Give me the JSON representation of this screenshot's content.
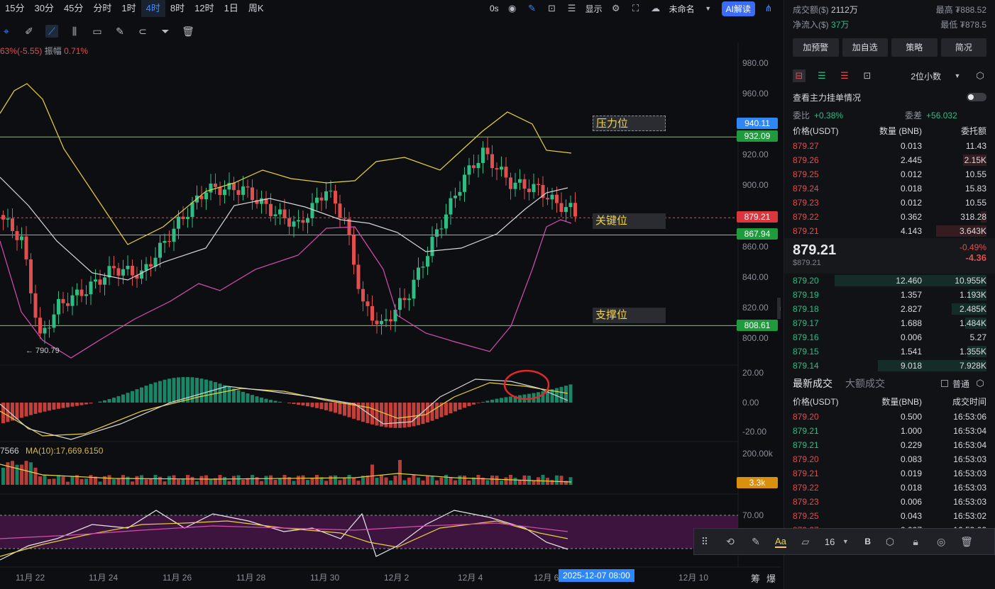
{
  "toolbar": {
    "timeframes": [
      "15分",
      "30分",
      "45分",
      "分时",
      "1时",
      "4时",
      "8时",
      "12时",
      "1日",
      "周K"
    ],
    "active_timeframe": "4时",
    "countdown": "0s",
    "display_label": "显示",
    "layout_name": "未命名",
    "ai_label": "AI解读"
  },
  "stats_line": {
    "change": "63%(-5.55)",
    "amplitude_label": "振幅",
    "amplitude": "0.71%"
  },
  "price_axis": [
    "980.00",
    "960.00",
    "940.00",
    "920.00",
    "900.00",
    "880.00",
    "860.00",
    "840.00",
    "820.00",
    "800.00"
  ],
  "price_tags": {
    "top": "940.11",
    "resistance": "932.09",
    "current": "879.21",
    "key": "867.94",
    "support": "808.61"
  },
  "annotations": {
    "resistance": "压力位",
    "key": "关键位",
    "support": "支撑位"
  },
  "low_marker": "← 790.79",
  "macd_axis": [
    "20.00",
    "0.00",
    "-20.00"
  ],
  "volume": {
    "ma_label": "7566",
    "ma10": "MA(10):17,669.6150",
    "axis_top": "200.00k",
    "tag": "3.3k"
  },
  "rsi_axis": [
    "70.00"
  ],
  "x_axis": [
    "11月 22",
    "11月 24",
    "11月 26",
    "11月 28",
    "11月 30",
    "12月 2",
    "12月 4",
    "12月 6",
    "12月 10"
  ],
  "crosshair_date": "2025-12-07 08:00",
  "bottom_right": [
    "筹",
    "爆"
  ],
  "float_toolbar": {
    "font_size": "16",
    "bold_label": "B",
    "aa_label": "Aa"
  },
  "colors": {
    "up": "#2dbd85",
    "down": "#e04e4e",
    "accent": "#3b6cf6",
    "annotation": "#f3d34a"
  },
  "side": {
    "stats": [
      {
        "k": "成交额($)",
        "v": "2112万",
        "k2": "最高",
        "v2": "₮888.52"
      },
      {
        "k": "净流入($)",
        "v": "37万",
        "k2": "最低",
        "v2": "₮878.5"
      }
    ],
    "buttons": [
      "加预警",
      "加自选",
      "策略",
      "简况"
    ],
    "decimal": "2位小数",
    "main_orders": "查看主力挂单情况",
    "weibi_label": "委比",
    "weibi": "+0.38%",
    "weicha_label": "委差",
    "weicha": "+56.032",
    "ob_headers": [
      "价格(USDT)",
      "数量 (BNB)",
      "委托额"
    ],
    "asks": [
      [
        "879.27",
        "0.013",
        "11.43",
        0
      ],
      [
        "879.26",
        "2.445",
        "2.15K",
        0.12
      ],
      [
        "879.25",
        "0.012",
        "10.55",
        0
      ],
      [
        "879.24",
        "0.018",
        "15.83",
        0
      ],
      [
        "879.23",
        "0.012",
        "10.55",
        0
      ],
      [
        "879.22",
        "0.362",
        "318.28",
        0.03
      ],
      [
        "879.21",
        "4.143",
        "3.643K",
        0.26
      ]
    ],
    "mid": {
      "price": "879.21",
      "usd": "$879.21",
      "pct": "-0.49%",
      "chg": "-4.36"
    },
    "bids": [
      [
        "879.20",
        "12.460",
        "10.955K",
        0.78
      ],
      [
        "879.19",
        "1.357",
        "1.193K",
        0.09
      ],
      [
        "879.18",
        "2.827",
        "2.485K",
        0.18
      ],
      [
        "879.17",
        "1.688",
        "1.484K",
        0.11
      ],
      [
        "879.16",
        "0.006",
        "5.27",
        0
      ],
      [
        "879.15",
        "1.541",
        "1.355K",
        0.1
      ],
      [
        "879.14",
        "9.018",
        "7.928K",
        0.56
      ]
    ],
    "trade_tabs": [
      "最新成交",
      "大额成交"
    ],
    "normal_label": "普通",
    "trade_headers": [
      "价格(USDT)",
      "数量(BNB)",
      "成交时间"
    ],
    "trades": [
      [
        "879.20",
        "0.500",
        "16:53:06",
        "down"
      ],
      [
        "879.21",
        "1.000",
        "16:53:04",
        "up"
      ],
      [
        "879.21",
        "0.229",
        "16:53:04",
        "up"
      ],
      [
        "879.20",
        "0.083",
        "16:53:03",
        "down"
      ],
      [
        "879.21",
        "0.019",
        "16:53:03",
        "down"
      ],
      [
        "879.22",
        "0.018",
        "16:53:03",
        "down"
      ],
      [
        "879.23",
        "0.006",
        "16:53:03",
        "down"
      ],
      [
        "879.25",
        "0.043",
        "16:53:02",
        "down"
      ],
      [
        "879.27",
        "0.007",
        "16:53:02",
        "down"
      ]
    ]
  }
}
